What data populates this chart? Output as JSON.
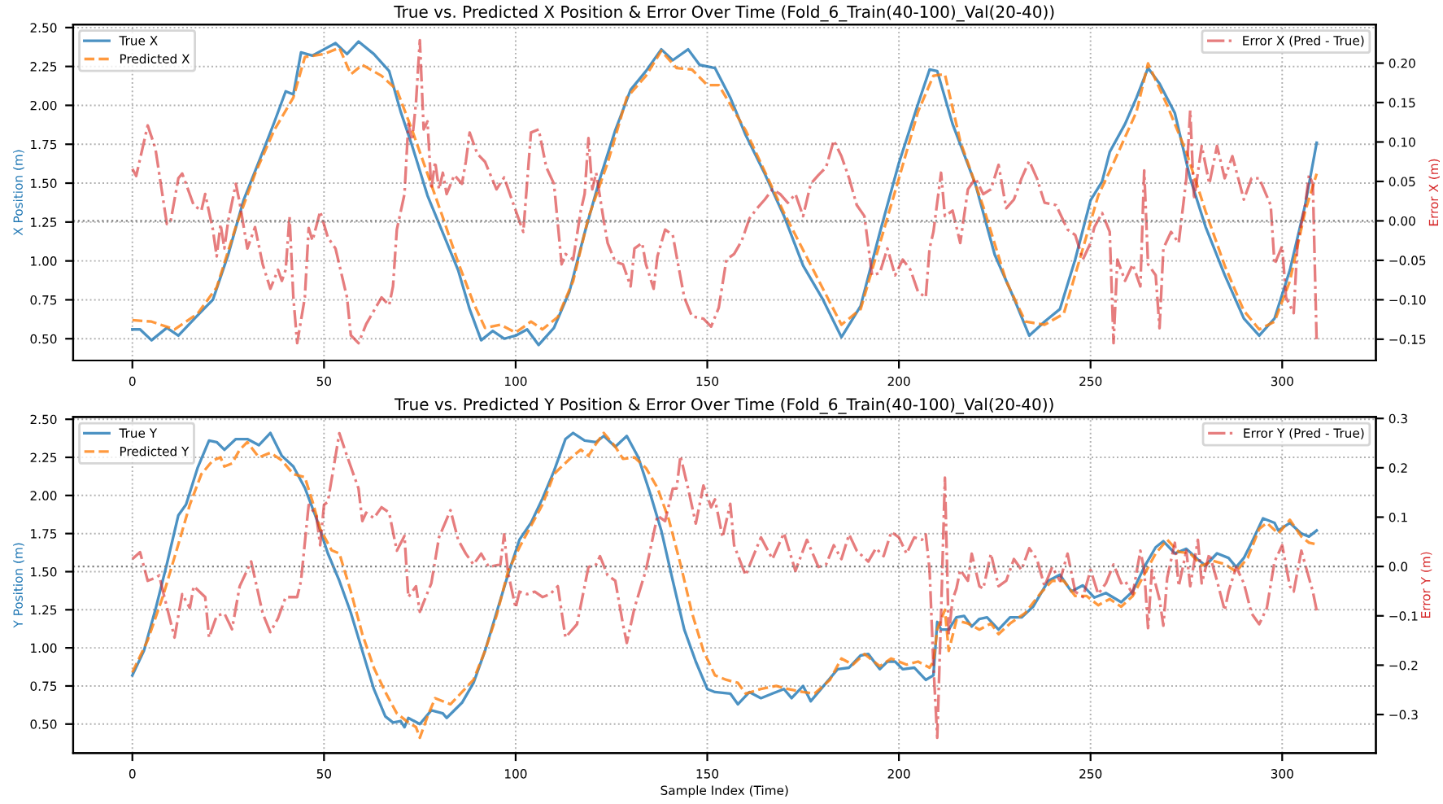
{
  "chart_data": [
    {
      "type": "line",
      "title": "True vs. Predicted X Position & Error Over Time (Fold_6_Train(40-100)_Val(20-40))",
      "ylabel": "X Position (m)",
      "y2label": "Error X (m)",
      "xlim": [
        -15.45,
        324.45
      ],
      "xticks": [
        0,
        50,
        100,
        150,
        200,
        250,
        300
      ],
      "ylim": [
        0.36,
        2.52
      ],
      "yticks": [
        {
          "value": 0.5,
          "label": "0.50"
        },
        {
          "value": 0.75,
          "label": "0.75"
        },
        {
          "value": 1.0,
          "label": "1.00"
        },
        {
          "value": 1.25,
          "label": "1.25"
        },
        {
          "value": 1.5,
          "label": "1.50"
        },
        {
          "value": 1.75,
          "label": "1.75"
        },
        {
          "value": 2.0,
          "label": "2.00"
        },
        {
          "value": 2.25,
          "label": "2.25"
        },
        {
          "value": 2.5,
          "label": "2.50"
        }
      ],
      "y2lim": [
        -0.177,
        0.249
      ],
      "y2ticks": [
        {
          "value": -0.15,
          "label": "−0.15"
        },
        {
          "value": -0.1,
          "label": "−0.10"
        },
        {
          "value": -0.05,
          "label": "−0.05"
        },
        {
          "value": 0,
          "label": "0.00"
        },
        {
          "value": 0.05,
          "label": "0.05"
        },
        {
          "value": 0.1,
          "label": "0.10"
        },
        {
          "value": 0.15,
          "label": "0.15"
        },
        {
          "value": 0.2,
          "label": "0.20"
        }
      ],
      "grid": true,
      "legend": "top left",
      "tick_labels": "x y",
      "ref_lines": [
        {
          "axis": "y2",
          "value": 0,
          "color": "#808080",
          "line_style": "dotted"
        }
      ],
      "series": [
        {
          "name": "True X",
          "color": "#1f77b4",
          "line_style": "solid",
          "x": [
            0,
            2,
            5,
            9,
            12,
            17,
            21,
            25,
            29,
            34,
            37,
            40,
            42,
            44,
            47,
            50,
            53,
            56,
            59,
            63,
            67,
            70,
            73,
            77,
            81,
            85,
            88,
            91,
            94,
            97,
            100,
            103,
            106,
            110,
            114,
            118,
            122,
            126,
            130,
            134,
            138,
            141,
            145,
            148,
            152,
            156,
            160,
            165,
            170,
            175,
            180,
            185,
            190,
            195,
            200,
            205,
            208,
            210,
            214,
            220,
            225,
            230,
            234,
            238,
            242,
            246,
            250,
            253,
            255,
            259,
            262,
            265,
            268,
            272,
            276,
            280,
            285,
            290,
            294,
            298,
            302,
            306,
            309
          ],
          "values": [
            0.56,
            0.56,
            0.49,
            0.57,
            0.52,
            0.65,
            0.75,
            1.04,
            1.39,
            1.7,
            1.89,
            2.09,
            2.07,
            2.34,
            2.32,
            2.36,
            2.4,
            2.33,
            2.41,
            2.33,
            2.22,
            1.96,
            1.74,
            1.42,
            1.18,
            0.94,
            0.69,
            0.49,
            0.55,
            0.5,
            0.52,
            0.56,
            0.46,
            0.57,
            0.8,
            1.18,
            1.53,
            1.84,
            2.1,
            2.22,
            2.36,
            2.29,
            2.36,
            2.26,
            2.24,
            2.05,
            1.81,
            1.56,
            1.29,
            0.97,
            0.76,
            0.51,
            0.71,
            1.18,
            1.63,
            2.01,
            2.23,
            2.22,
            1.88,
            1.49,
            1.04,
            0.76,
            0.52,
            0.61,
            0.69,
            1.01,
            1.39,
            1.51,
            1.7,
            1.88,
            2.05,
            2.24,
            2.14,
            1.95,
            1.53,
            1.22,
            0.91,
            0.63,
            0.52,
            0.63,
            0.94,
            1.36,
            1.76
          ]
        },
        {
          "name": "Predicted X",
          "color": "#ff7f0e",
          "line_style": "dashed",
          "x": [
            0,
            5,
            11,
            17,
            22,
            27,
            32,
            37,
            42,
            45,
            50,
            54,
            57,
            60,
            65,
            69,
            73,
            77,
            81,
            85,
            89,
            92,
            96,
            100,
            104,
            107,
            111,
            115,
            119,
            124,
            129,
            134,
            138,
            142,
            146,
            150,
            153,
            160,
            170,
            180,
            185,
            190,
            195,
            200,
            205,
            209,
            212,
            216,
            222,
            228,
            233,
            238,
            243,
            248,
            252,
            256,
            262,
            265,
            270,
            275,
            280,
            285,
            290,
            294,
            298,
            302,
            306,
            309
          ],
          "values": [
            0.62,
            0.61,
            0.56,
            0.66,
            0.83,
            1.22,
            1.56,
            1.84,
            2.05,
            2.31,
            2.33,
            2.37,
            2.2,
            2.26,
            2.19,
            2.1,
            1.84,
            1.56,
            1.28,
            0.99,
            0.73,
            0.57,
            0.59,
            0.54,
            0.61,
            0.56,
            0.64,
            0.87,
            1.28,
            1.63,
            2.05,
            2.19,
            2.35,
            2.24,
            2.23,
            2.13,
            2.13,
            1.84,
            1.31,
            0.83,
            0.59,
            0.69,
            1.11,
            1.53,
            1.96,
            2.19,
            2.2,
            1.77,
            1.35,
            0.87,
            0.61,
            0.59,
            0.66,
            1.08,
            1.42,
            1.63,
            1.96,
            2.27,
            2.0,
            1.7,
            1.32,
            0.97,
            0.68,
            0.56,
            0.61,
            0.87,
            1.32,
            1.56
          ]
        },
        {
          "name": "Error X (Pred - True)",
          "color": "#d62728",
          "line_style": "dashdot",
          "axis": "y2",
          "x": [
            0,
            1,
            4,
            6,
            9,
            10,
            12,
            13,
            16,
            18,
            19,
            21,
            22,
            23,
            24,
            25,
            27,
            28,
            30,
            32,
            34,
            36,
            38,
            39,
            40,
            41,
            42,
            43,
            45,
            46,
            47,
            49,
            51,
            53,
            56,
            57,
            59,
            61,
            63,
            65,
            67,
            68,
            69,
            71,
            72,
            73,
            74,
            75,
            76,
            77,
            78,
            79,
            80,
            81,
            82,
            84,
            86,
            87,
            88,
            90,
            92,
            95,
            97,
            99,
            102,
            104,
            106,
            108,
            110,
            112,
            113,
            115,
            117,
            118,
            119,
            120,
            121,
            123,
            124,
            126,
            128,
            130,
            131,
            133,
            134,
            136,
            137,
            139,
            141,
            142,
            144,
            146,
            149,
            151,
            153,
            155,
            157,
            159,
            161,
            163,
            165,
            167,
            169,
            171,
            173,
            175,
            177,
            179,
            181,
            183,
            185,
            187,
            189,
            191,
            193,
            195,
            197,
            199,
            201,
            203,
            205,
            207,
            208,
            209,
            211,
            212,
            214,
            216,
            218,
            220,
            222,
            224,
            226,
            228,
            230,
            232,
            234,
            236,
            238,
            241,
            244,
            246,
            248,
            250,
            251,
            253,
            255,
            256,
            257,
            259,
            261,
            263,
            264,
            265,
            267,
            268,
            269,
            271,
            273,
            275,
            276,
            277,
            279,
            281,
            283,
            285,
            287,
            290,
            292,
            294,
            297,
            298,
            300,
            301,
            303,
            304,
            306,
            307,
            308,
            309
          ],
          "values": [
            0.066,
            0.057,
            0.121,
            0.092,
            -0.004,
            0,
            0.054,
            0.06,
            0.02,
            0.013,
            0.034,
            -0.011,
            -0.045,
            -0.004,
            -0.035,
            0,
            0.047,
            0.023,
            -0.035,
            -0.008,
            -0.055,
            -0.086,
            -0.062,
            -0.076,
            -0.062,
            0.006,
            -0.097,
            -0.155,
            -0.097,
            -0.009,
            -0.025,
            0.012,
            -0.021,
            -0.035,
            -0.097,
            -0.145,
            -0.155,
            -0.131,
            -0.114,
            -0.097,
            -0.107,
            -0.083,
            -0.011,
            0.034,
            0.123,
            0.102,
            0.15,
            0.229,
            0.116,
            0.126,
            0.04,
            0.075,
            0.04,
            0.061,
            0.034,
            0.058,
            0.047,
            0.075,
            0.112,
            0.085,
            0.075,
            0.04,
            0.055,
            0.027,
            -0.014,
            0.112,
            0.116,
            0.068,
            0.047,
            -0.055,
            -0.042,
            -0.049,
            0.013,
            0.034,
            0.105,
            0.04,
            0.061,
            0,
            -0.028,
            -0.052,
            -0.055,
            -0.083,
            -0.035,
            -0.028,
            -0.055,
            -0.086,
            -0.045,
            -0.011,
            -0.018,
            -0.045,
            -0.097,
            -0.121,
            -0.124,
            -0.134,
            -0.11,
            -0.049,
            -0.042,
            -0.025,
            0.003,
            0.016,
            0.027,
            0.04,
            0.034,
            0.023,
            0.034,
            0.006,
            0.047,
            0.058,
            0.068,
            0.102,
            0.082,
            0.054,
            0.02,
            0.006,
            -0.069,
            -0.066,
            -0.035,
            -0.069,
            -0.049,
            -0.062,
            -0.09,
            -0.097,
            -0.035,
            -0.014,
            0.061,
            0.006,
            0.013,
            -0.028,
            0.04,
            0.054,
            0.034,
            0.04,
            0.071,
            0.016,
            0.027,
            0.054,
            0.076,
            0.054,
            0.023,
            0.02,
            -0.011,
            -0.018,
            -0.049,
            -0.028,
            -0.008,
            0.01,
            -0.014,
            -0.155,
            -0.049,
            -0.076,
            -0.055,
            -0.083,
            0.064,
            -0.055,
            -0.069,
            -0.136,
            -0.035,
            -0.014,
            -0.028,
            0.054,
            0.14,
            0.027,
            0.095,
            0.047,
            0.095,
            0.054,
            0.082,
            0.027,
            0.054,
            0.054,
            0.02,
            -0.055,
            -0.032,
            -0.097,
            -0.117,
            -0.028,
            0.02,
            0.058,
            0.047,
            -0.155
          ]
        }
      ]
    },
    {
      "type": "line",
      "title": "True vs. Predicted Y Position & Error Over Time (Fold_6_Train(40-100)_Val(20-40))",
      "xlabel": "Sample Index (Time)",
      "ylabel": "Y Position (m)",
      "y2label": "Error Y (m)",
      "xlim": [
        -15.45,
        324.45
      ],
      "xticks": [
        0,
        50,
        100,
        150,
        200,
        250,
        300
      ],
      "ylim": [
        0.31,
        2.515
      ],
      "yticks": [
        {
          "value": 0.5,
          "label": "0.50"
        },
        {
          "value": 0.75,
          "label": "0.75"
        },
        {
          "value": 1.0,
          "label": "1.00"
        },
        {
          "value": 1.25,
          "label": "1.25"
        },
        {
          "value": 1.5,
          "label": "1.50"
        },
        {
          "value": 1.75,
          "label": "1.75"
        },
        {
          "value": 2.0,
          "label": "2.00"
        },
        {
          "value": 2.25,
          "label": "2.25"
        },
        {
          "value": 2.5,
          "label": "2.50"
        }
      ],
      "y2lim": [
        -0.378,
        0.303
      ],
      "y2ticks": [
        {
          "value": -0.3,
          "label": "−0.3"
        },
        {
          "value": -0.2,
          "label": "−0.2"
        },
        {
          "value": -0.1,
          "label": "−0.1"
        },
        {
          "value": 0,
          "label": "0.0"
        },
        0.1,
        0.2,
        0.3
      ],
      "grid": true,
      "legend": "top left",
      "ref_lines": [
        {
          "axis": "y2",
          "value": 0,
          "color": "#808080",
          "line_style": "dotted"
        }
      ],
      "series": [
        {
          "name": "True Y",
          "color": "#1f77b4",
          "line_style": "solid",
          "x": [
            0,
            3,
            6,
            9,
            12,
            14,
            17,
            20,
            22,
            24,
            27,
            30,
            33,
            36,
            39,
            42,
            45,
            48,
            51,
            54,
            57,
            60,
            63,
            66,
            68,
            70,
            71,
            72,
            75,
            78,
            81,
            82,
            86,
            89,
            92,
            95,
            98,
            101,
            104,
            107,
            110,
            113,
            115,
            118,
            121,
            123,
            126,
            129,
            132,
            135,
            138,
            141,
            144,
            147,
            150,
            152,
            156,
            158,
            161,
            164,
            167,
            170,
            172,
            175,
            177,
            180,
            184,
            187,
            190,
            192,
            195,
            197,
            199,
            201,
            204,
            207,
            209,
            210,
            211,
            213,
            215,
            217,
            219,
            221,
            223,
            226,
            229,
            232,
            235,
            239,
            242,
            245,
            248,
            251,
            254,
            258,
            261,
            264,
            267,
            269,
            272,
            275,
            278,
            280,
            283,
            286,
            288,
            290,
            292,
            295,
            298,
            299,
            302,
            305,
            307,
            309
          ],
          "values": [
            0.82,
            0.98,
            1.25,
            1.55,
            1.87,
            1.94,
            2.18,
            2.36,
            2.35,
            2.3,
            2.37,
            2.37,
            2.33,
            2.41,
            2.26,
            2.19,
            2.05,
            1.85,
            1.62,
            1.44,
            1.23,
            0.98,
            0.73,
            0.55,
            0.51,
            0.52,
            0.48,
            0.54,
            0.5,
            0.59,
            0.57,
            0.54,
            0.64,
            0.77,
            0.98,
            1.23,
            1.48,
            1.71,
            1.82,
            1.98,
            2.16,
            2.37,
            2.41,
            2.36,
            2.35,
            2.39,
            2.32,
            2.39,
            2.25,
            2.02,
            1.77,
            1.44,
            1.12,
            0.91,
            0.73,
            0.71,
            0.7,
            0.63,
            0.71,
            0.67,
            0.7,
            0.73,
            0.67,
            0.75,
            0.65,
            0.74,
            0.86,
            0.87,
            0.95,
            0.96,
            0.86,
            0.91,
            0.91,
            0.86,
            0.87,
            0.79,
            0.82,
            1.17,
            1.12,
            1.12,
            1.2,
            1.21,
            1.14,
            1.19,
            1.2,
            1.12,
            1.2,
            1.2,
            1.27,
            1.44,
            1.48,
            1.37,
            1.41,
            1.33,
            1.36,
            1.3,
            1.37,
            1.53,
            1.66,
            1.7,
            1.62,
            1.65,
            1.58,
            1.54,
            1.62,
            1.59,
            1.53,
            1.59,
            1.69,
            1.85,
            1.82,
            1.77,
            1.82,
            1.75,
            1.73,
            1.77
          ]
        },
        {
          "name": "Predicted Y",
          "color": "#ff7f0e",
          "line_style": "dashed",
          "x": [
            0,
            4,
            8,
            12,
            15,
            18,
            21,
            23,
            24,
            26,
            28,
            30,
            33,
            36,
            39,
            42,
            45,
            47,
            49,
            52,
            54,
            57,
            60,
            63,
            66,
            69,
            72,
            74,
            75,
            77,
            79,
            81,
            83,
            86,
            89,
            92,
            95,
            98,
            101,
            104,
            107,
            110,
            112,
            115,
            117,
            119,
            121,
            123,
            126,
            128,
            131,
            134,
            137,
            140,
            143,
            146,
            149,
            152,
            155,
            158,
            160,
            164,
            168,
            171,
            175,
            178,
            182,
            185,
            188,
            191,
            195,
            198,
            202,
            205,
            208,
            209,
            210,
            212,
            213,
            215,
            218,
            221,
            224,
            226,
            229,
            233,
            237,
            240,
            243,
            246,
            249,
            252,
            255,
            258,
            261,
            264,
            267,
            270,
            273,
            276,
            279,
            282,
            285,
            288,
            291,
            294,
            296,
            299,
            302,
            305,
            307,
            309
          ],
          "values": [
            0.84,
            1.05,
            1.34,
            1.68,
            1.94,
            2.14,
            2.23,
            2.25,
            2.19,
            2.21,
            2.3,
            2.35,
            2.25,
            2.28,
            2.23,
            2.14,
            2.12,
            1.96,
            1.78,
            1.64,
            1.62,
            1.37,
            1.09,
            0.87,
            0.71,
            0.57,
            0.51,
            0.48,
            0.41,
            0.55,
            0.67,
            0.65,
            0.63,
            0.71,
            0.79,
            0.98,
            1.21,
            1.5,
            1.66,
            1.8,
            1.94,
            2.14,
            2.19,
            2.26,
            2.3,
            2.26,
            2.34,
            2.41,
            2.32,
            2.24,
            2.25,
            2.18,
            2.05,
            1.84,
            1.55,
            1.23,
            0.98,
            0.82,
            0.79,
            0.77,
            0.7,
            0.73,
            0.75,
            0.73,
            0.71,
            0.7,
            0.79,
            0.93,
            0.89,
            0.96,
            0.88,
            0.93,
            0.89,
            0.91,
            0.87,
            0.91,
            1.12,
            1.25,
            0.98,
            1.18,
            1.16,
            1.12,
            1.16,
            1.09,
            1.16,
            1.23,
            1.36,
            1.44,
            1.44,
            1.34,
            1.34,
            1.28,
            1.32,
            1.27,
            1.34,
            1.48,
            1.62,
            1.71,
            1.63,
            1.62,
            1.54,
            1.57,
            1.55,
            1.5,
            1.59,
            1.78,
            1.82,
            1.75,
            1.84,
            1.73,
            1.69,
            1.68
          ]
        },
        {
          "name": "Error Y (Pred - True)",
          "color": "#d62728",
          "line_style": "dashdot",
          "axis": "y2",
          "x": [
            0,
            2,
            4,
            6,
            7,
            8,
            11,
            13,
            15,
            16,
            19,
            20,
            22,
            24,
            26,
            28,
            31,
            34,
            36,
            38,
            40,
            43,
            44,
            46,
            48,
            49,
            50,
            51,
            54,
            56,
            59,
            60,
            61,
            63,
            65,
            67,
            69,
            71,
            72,
            74,
            75,
            78,
            80,
            83,
            85,
            87,
            89,
            91,
            93,
            96,
            97,
            98,
            100,
            101,
            103,
            105,
            107,
            109,
            111,
            113,
            116,
            119,
            121,
            122,
            124,
            126,
            128,
            129,
            131,
            134,
            137,
            139,
            141,
            142,
            143,
            145,
            147,
            149,
            151,
            152,
            154,
            156,
            157,
            160,
            162,
            164,
            167,
            170,
            173,
            176,
            179,
            181,
            183,
            185,
            187,
            189,
            192,
            194,
            196,
            198,
            200,
            202,
            204,
            206,
            207,
            208,
            209,
            210,
            211,
            212,
            213,
            214,
            215,
            216,
            218,
            219,
            221,
            222,
            224,
            226,
            228,
            230,
            232,
            234,
            236,
            238,
            240,
            242,
            244,
            246,
            248,
            250,
            252,
            254,
            256,
            258,
            259,
            261,
            263,
            264,
            265,
            266,
            268,
            269,
            270,
            272,
            273,
            275,
            276,
            278,
            279,
            281,
            283,
            285,
            286,
            288,
            290,
            292,
            294,
            296,
            298,
            300,
            302,
            303,
            305,
            306,
            308,
            309
          ],
          "values": [
            0.015,
            0.029,
            -0.029,
            -0.023,
            -0.018,
            -0.051,
            -0.144,
            -0.056,
            -0.084,
            -0.04,
            -0.062,
            -0.144,
            -0.1,
            -0.095,
            -0.127,
            -0.04,
            0.01,
            -0.095,
            -0.133,
            -0.105,
            -0.062,
            -0.062,
            -0.029,
            0.125,
            0.103,
            0.043,
            0.125,
            0.131,
            0.27,
            0.224,
            0.158,
            0.092,
            0.109,
            0.098,
            0.12,
            0.109,
            0.032,
            0.062,
            -0.062,
            -0.04,
            -0.092,
            -0.034,
            0.059,
            0.114,
            0.054,
            0.026,
            0.004,
            0.026,
            -0.001,
            0.004,
            0.065,
            -0.012,
            -0.084,
            -0.051,
            -0.056,
            -0.051,
            -0.062,
            -0.056,
            -0.04,
            -0.144,
            -0.117,
            -0.001,
            0.004,
            0.021,
            -0.018,
            -0.029,
            -0.117,
            -0.155,
            -0.084,
            -0.007,
            0.103,
            0.092,
            0.158,
            0.158,
            0.224,
            0.158,
            0.087,
            0.164,
            0.12,
            0.136,
            0.059,
            0.127,
            0.043,
            -0.018,
            0.021,
            0.059,
            0.015,
            0.068,
            -0.009,
            0.054,
            -0.001,
            0.004,
            0.043,
            0.015,
            0.065,
            0.032,
            0.01,
            0.037,
            0.021,
            0.07,
            0.059,
            0.026,
            0.059,
            0.054,
            0.065,
            -0.007,
            -0.199,
            -0.347,
            -0.095,
            0.18,
            -0.138,
            -0.067,
            -0.045,
            -0.007,
            -0.029,
            0.026,
            -0.04,
            -0.045,
            0.026,
            -0.04,
            -0.029,
            0.015,
            -0.007,
            0.037,
            0.015,
            -0.04,
            -0.001,
            -0.029,
            0.026,
            -0.051,
            -0.062,
            -0.007,
            -0.056,
            -0.034,
            0.004,
            -0.034,
            -0.029,
            -0.056,
            0.032,
            -0.007,
            -0.125,
            -0.007,
            -0.067,
            -0.12,
            -0.023,
            0.048,
            -0.04,
            0.032,
            -0.04,
            0.054,
            -0.034,
            0.026,
            -0.029,
            -0.089,
            -0.051,
            -0.001,
            -0.034,
            -0.095,
            -0.117,
            -0.084,
            0.01,
            0.043,
            -0.04,
            -0.051,
            0.032,
            0.004,
            -0.051,
            -0.089
          ]
        }
      ]
    }
  ]
}
